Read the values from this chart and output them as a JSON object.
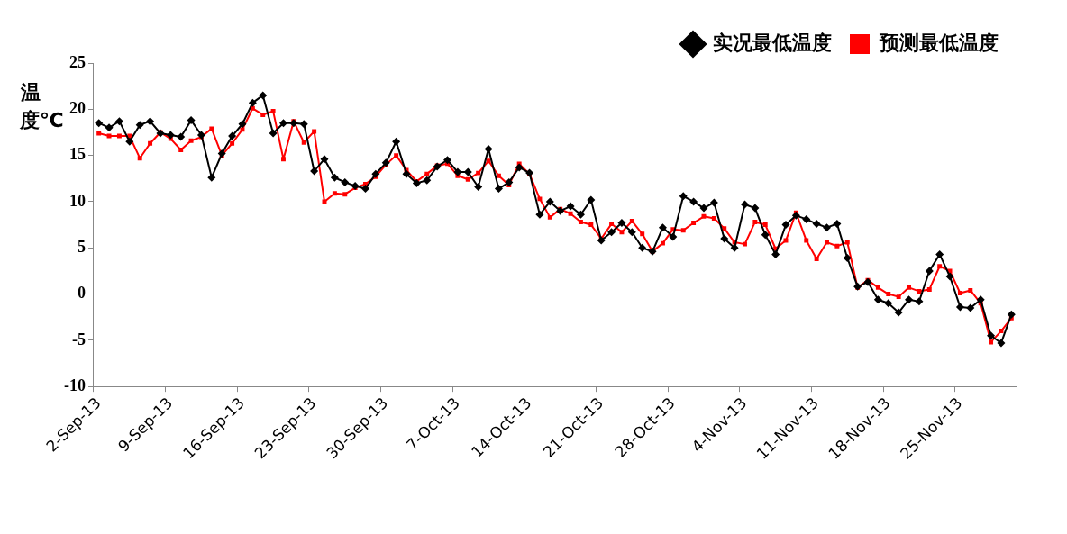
{
  "chart_data": {
    "type": "line",
    "ylabel": "温度℃",
    "categories": [
      "2-Sep-13",
      null,
      null,
      null,
      null,
      null,
      null,
      "9-Sep-13",
      null,
      null,
      null,
      null,
      null,
      null,
      "16-Sep-13",
      null,
      null,
      null,
      null,
      null,
      null,
      "23-Sep-13",
      null,
      null,
      null,
      null,
      null,
      null,
      "30-Sep-13",
      null,
      null,
      null,
      null,
      null,
      null,
      "7-Oct-13",
      null,
      null,
      null,
      null,
      null,
      null,
      "14-Oct-13",
      null,
      null,
      null,
      null,
      null,
      null,
      "21-Oct-13",
      null,
      null,
      null,
      null,
      null,
      null,
      "28-Oct-13",
      null,
      null,
      null,
      null,
      null,
      null,
      "4-Nov-13",
      null,
      null,
      null,
      null,
      null,
      null,
      "11-Nov-13",
      null,
      null,
      null,
      null,
      null,
      null,
      "18-Nov-13",
      null,
      null,
      null,
      null,
      null,
      null,
      "25-Nov-13",
      null,
      null,
      null,
      null,
      null
    ],
    "series": [
      {
        "name": "实况最低温度",
        "color": "#000000",
        "marker": "diamond",
        "values": [
          18.5,
          18.0,
          18.7,
          16.5,
          18.3,
          18.7,
          17.4,
          17.2,
          17.0,
          18.8,
          17.2,
          12.6,
          15.2,
          17.1,
          18.4,
          20.7,
          21.5,
          17.4,
          18.5,
          18.5,
          18.4,
          13.3,
          14.6,
          12.6,
          12.1,
          11.7,
          11.4,
          13.0,
          14.2,
          16.5,
          13.0,
          12.0,
          12.3,
          13.8,
          14.5,
          13.2,
          13.2,
          11.6,
          15.7,
          11.4,
          12.1,
          13.7,
          13.1,
          8.6,
          10.0,
          9.0,
          9.5,
          8.6,
          10.2,
          5.8,
          6.7,
          7.7,
          6.7,
          5.0,
          4.6,
          7.2,
          6.2,
          10.6,
          10.0,
          9.3,
          9.9,
          6.0,
          5.0,
          9.7,
          9.3,
          6.4,
          4.3,
          7.5,
          8.5,
          8.1,
          7.6,
          7.2,
          7.6,
          3.9,
          0.8,
          1.3,
          -0.6,
          -1.0,
          -2.0,
          -0.6,
          -0.8,
          2.5,
          4.3,
          1.9,
          -1.4,
          -1.5,
          -0.6,
          -4.5,
          -5.3,
          -2.2
        ]
      },
      {
        "name": "预测最低温度",
        "color": "#ff0000",
        "marker": "square",
        "values": [
          17.4,
          17.1,
          17.1,
          17.1,
          14.7,
          16.3,
          17.5,
          16.8,
          15.6,
          16.6,
          17.0,
          17.9,
          15.0,
          16.3,
          17.8,
          20.1,
          19.4,
          19.8,
          14.6,
          18.7,
          16.4,
          17.6,
          10.0,
          10.9,
          10.8,
          11.5,
          11.9,
          12.7,
          14.0,
          15.0,
          13.4,
          12.2,
          13.0,
          13.9,
          14.1,
          12.8,
          12.4,
          13.1,
          14.4,
          12.8,
          11.8,
          14.1,
          13.0,
          10.3,
          8.3,
          9.2,
          8.7,
          7.8,
          7.5,
          6.0,
          7.6,
          6.7,
          7.9,
          6.5,
          4.6,
          5.5,
          7.0,
          6.9,
          7.7,
          8.4,
          8.2,
          7.1,
          5.6,
          5.4,
          7.8,
          7.5,
          4.9,
          5.8,
          8.8,
          5.8,
          3.8,
          5.6,
          5.2,
          5.6,
          0.7,
          1.5,
          0.7,
          0.0,
          -0.3,
          0.7,
          0.3,
          0.5,
          3.0,
          2.5,
          0.1,
          0.4,
          -1.0,
          -5.2,
          -4.0,
          -2.6
        ]
      }
    ],
    "ylim": [
      -10,
      25
    ],
    "yticks": [
      -10,
      -5,
      0,
      5,
      10,
      15,
      20,
      25
    ],
    "grid": false,
    "legend": "top right",
    "line_style": "solid"
  }
}
